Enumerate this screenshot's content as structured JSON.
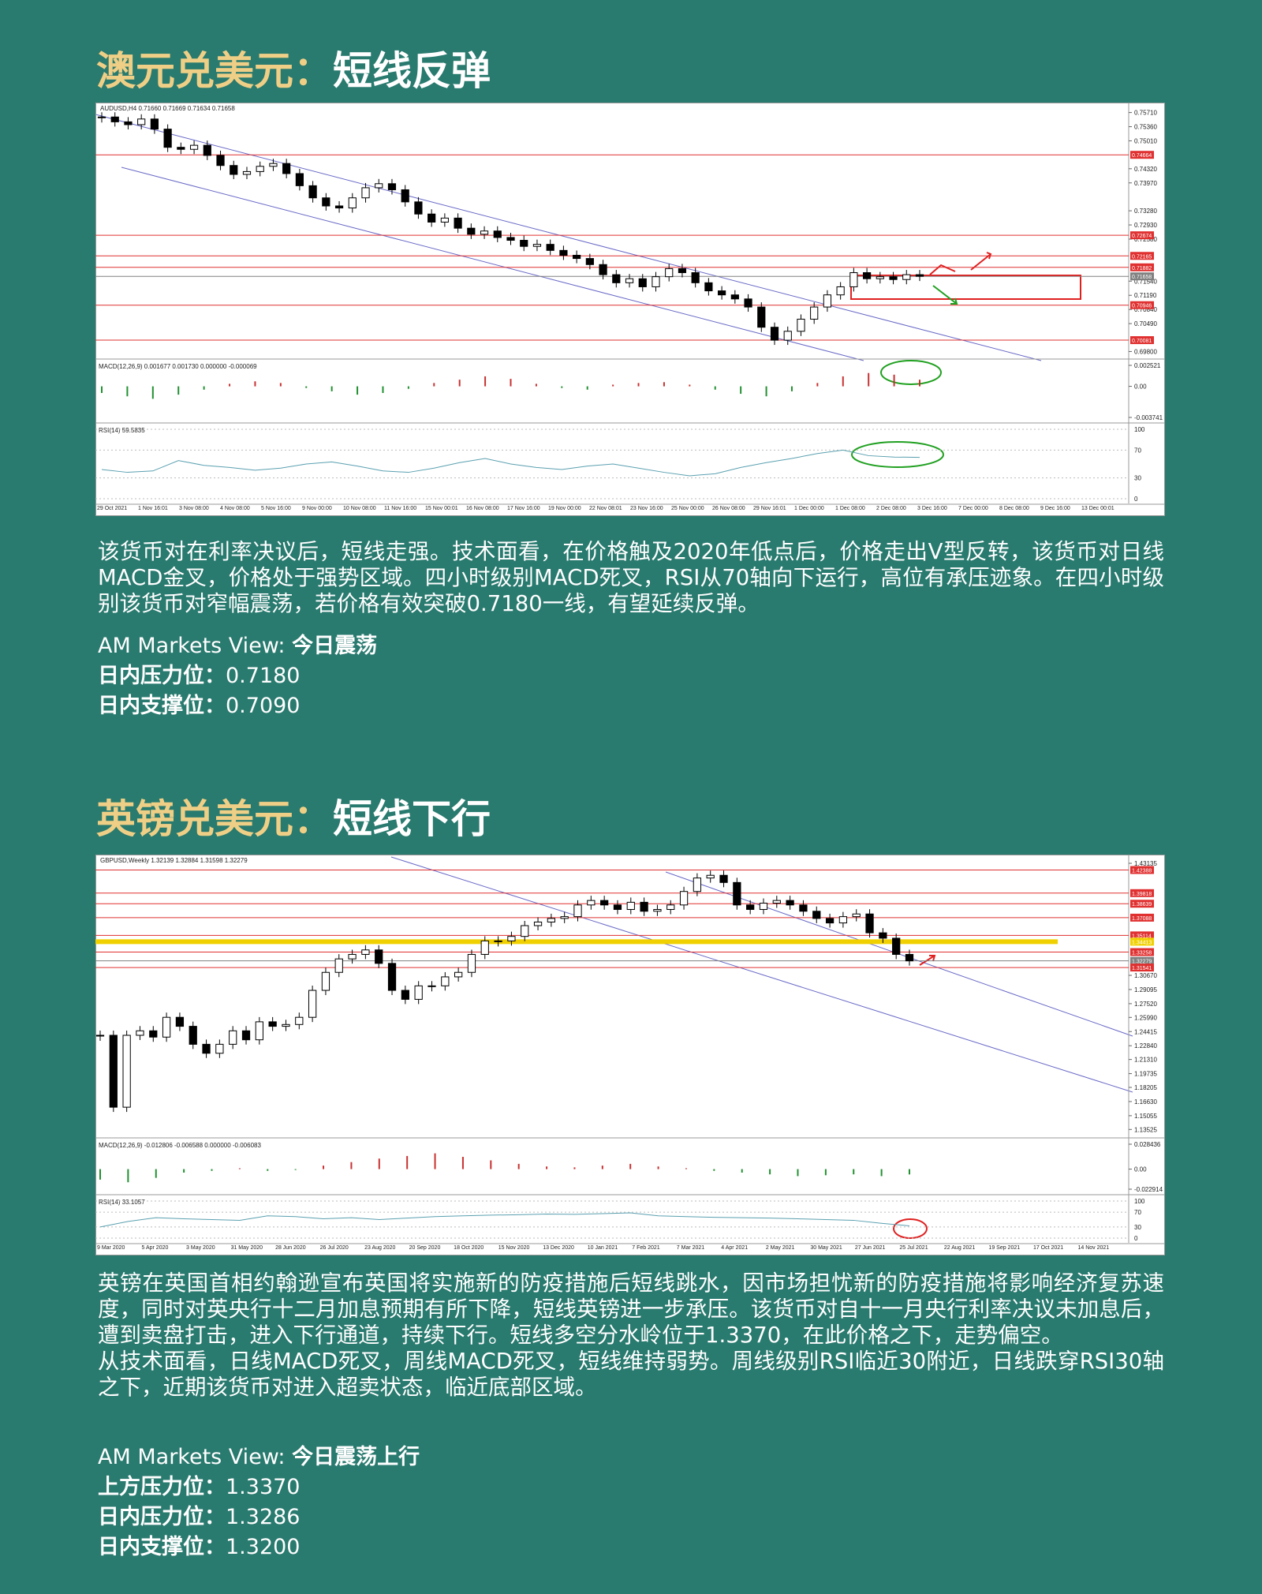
{
  "sections": [
    {
      "title_gold": "澳元兑美元：",
      "title_white": "短线反弹",
      "chart": {
        "header": "AUDUSD,H4  0.71660 0.71669 0.71634 0.71658",
        "ylim": [
          0.6975,
          0.758
        ],
        "yticks": [
          {
            "value": 0.7571,
            "label": "0.75710"
          },
          {
            "value": 0.7536,
            "label": "0.75360"
          },
          {
            "value": 0.7501,
            "label": "0.75010"
          },
          {
            "value": 0.7432,
            "label": "0.74320"
          },
          {
            "value": 0.7397,
            "label": "0.73970"
          },
          {
            "value": 0.7328,
            "label": "0.73280"
          },
          {
            "value": 0.7293,
            "label": "0.72930"
          },
          {
            "value": 0.7258,
            "label": "0.72580"
          },
          {
            "value": 0.7154,
            "label": "0.71540"
          },
          {
            "value": 0.7119,
            "label": "0.71190"
          },
          {
            "value": 0.7084,
            "label": "0.70840"
          },
          {
            "value": 0.7049,
            "label": "0.70490"
          },
          {
            "value": 0.698,
            "label": "0.69800"
          }
        ],
        "levels": [
          {
            "value": 0.74664,
            "color": "#e03030"
          },
          {
            "value": 0.72674,
            "color": "#e03030"
          },
          {
            "value": 0.72165,
            "color": "#e03030"
          },
          {
            "value": 0.71882,
            "color": "#e03030"
          },
          {
            "value": 0.71658,
            "color": "#808080"
          },
          {
            "value": 0.70946,
            "color": "#e03030"
          },
          {
            "value": 0.70081,
            "color": "#e03030"
          }
        ],
        "closes": [
          0.756,
          0.7548,
          0.7541,
          0.7555,
          0.753,
          0.7485,
          0.748,
          0.749,
          0.7465,
          0.744,
          0.7418,
          0.7425,
          0.7438,
          0.7445,
          0.742,
          0.739,
          0.736,
          0.734,
          0.7335,
          0.736,
          0.7385,
          0.7395,
          0.738,
          0.735,
          0.732,
          0.73,
          0.731,
          0.7285,
          0.727,
          0.7278,
          0.7262,
          0.7255,
          0.724,
          0.7245,
          0.723,
          0.7218,
          0.721,
          0.7195,
          0.717,
          0.715,
          0.716,
          0.714,
          0.7165,
          0.7185,
          0.7175,
          0.715,
          0.713,
          0.712,
          0.711,
          0.709,
          0.704,
          0.7008,
          0.703,
          0.706,
          0.709,
          0.712,
          0.714,
          0.7175,
          0.716,
          0.7165,
          0.7158,
          0.717,
          0.7166
        ],
        "macd": {
          "label": "MACD(12,26,9) 0.001677 0.001730 0.000000 -0.000069",
          "ylim": [
            -0.003741,
            0.002521
          ],
          "yticks": [
            0.002521,
            {
              "value": 0,
              "label": "0.00"
            },
            -0.003741
          ],
          "histogram": [
            -0.0008,
            -0.0012,
            -0.0015,
            -0.001,
            -0.0004,
            0.0003,
            0.0006,
            0.0004,
            -0.0002,
            -0.0006,
            -0.001,
            -0.0008,
            -0.0003,
            0.0004,
            0.0008,
            0.0012,
            0.0009,
            0.0003,
            -0.0002,
            -0.0004,
            0.0002,
            0.0004,
            0.0005,
            0.0002,
            -0.0004,
            -0.0009,
            -0.0012,
            -0.0006,
            0.0004,
            0.0012,
            0.0016,
            0.0014,
            0.0008
          ]
        },
        "rsi": {
          "label": "RSI(14) 59.5835",
          "ylim": [
            0,
            100
          ],
          "yticks": [
            100,
            70,
            30,
            0
          ],
          "values": [
            42,
            38,
            40,
            55,
            48,
            45,
            41,
            44,
            50,
            53,
            47,
            40,
            38,
            44,
            52,
            58,
            50,
            45,
            42,
            47,
            50,
            44,
            38,
            33,
            36,
            45,
            52,
            58,
            65,
            70,
            62,
            60,
            59.5835
          ]
        },
        "xticks": [
          "29 Oct 2021",
          "1 Nov 16:01",
          "3 Nov 08:00",
          "4 Nov 08:00",
          "5 Nov 16:00",
          "9 Nov 00:00",
          "10 Nov 08:00",
          "11 Nov 16:00",
          "15 Nov 00:01",
          "16 Nov 08:00",
          "17 Nov 16:00",
          "19 Nov 00:00",
          "22 Nov 08:01",
          "23 Nov 16:00",
          "25 Nov 00:00",
          "26 Nov 08:00",
          "29 Nov 16:01",
          "1 Dec 00:00",
          "1 Dec 08:00",
          "2 Dec 08:00",
          "3 Dec 16:00",
          "7 Dec 00:00",
          "8 Dec 08:00",
          "9 Dec 16:00",
          "13 Dec 00:01"
        ]
      },
      "paragraphs": [
        "该货币对在利率决议后，短线走强。技术面看，在价格触及2020年低点后，价格走出V型反转，该货币对日线MACD金叉，价格处于强势区域。四小时级别MACD死叉，RSI从70轴向下运行，高位有承压迹象。在四小时级别该货币对窄幅震荡，若价格有效突破0.7180一线，有望延续反弹。"
      ],
      "view_label": "AM Markets View: ",
      "view_value": "今日震荡",
      "levels": [
        {
          "label": "日内压力位：",
          "value": "0.7180"
        },
        {
          "label": "日内支撑位：",
          "value": "0.7090"
        }
      ]
    },
    {
      "title_gold": "英镑兑美元：",
      "title_white": "短线下行",
      "chart": {
        "header": "GBPUSD,Weekly  1.32139 1.32884 1.31598 1.32279",
        "ylim": [
          1.132,
          1.434
        ],
        "yticks": [
          1.43135,
          {
            "value": 1.3067,
            "label": "1.30670"
          },
          1.29095,
          {
            "value": 1.2752,
            "label": "1.27520"
          },
          {
            "value": 1.2599,
            "label": "1.25990"
          },
          1.24415,
          {
            "value": 1.2284,
            "label": "1.22840"
          },
          {
            "value": 1.2131,
            "label": "1.21310"
          },
          1.19735,
          1.18205,
          {
            "value": 1.1663,
            "label": "1.16630"
          },
          1.15055,
          1.13525
        ],
        "levels": [
          {
            "value": 1.42388,
            "color": "#e03030"
          },
          {
            "value": 1.39818,
            "color": "#e03030"
          },
          {
            "value": 1.38639,
            "color": "#e03030"
          },
          {
            "value": 1.37088,
            "color": "#e03030"
          },
          {
            "value": 1.35114,
            "color": "#e03030"
          },
          {
            "value": 1.34413,
            "color": "#f0d000"
          },
          {
            "value": 1.33258,
            "color": "#e03030"
          },
          {
            "value": 1.32279,
            "color": "#808080"
          },
          {
            "value": 1.31541,
            "color": "#e03030"
          }
        ],
        "closes": [
          1.24,
          1.16,
          1.24,
          1.245,
          1.238,
          1.26,
          1.25,
          1.23,
          1.22,
          1.23,
          1.245,
          1.235,
          1.255,
          1.25,
          1.252,
          1.26,
          1.29,
          1.31,
          1.325,
          1.33,
          1.335,
          1.32,
          1.29,
          1.28,
          1.295,
          1.295,
          1.305,
          1.31,
          1.33,
          1.345,
          1.345,
          1.35,
          1.362,
          1.366,
          1.37,
          1.372,
          1.385,
          1.39,
          1.385,
          1.38,
          1.388,
          1.378,
          1.38,
          1.385,
          1.4,
          1.415,
          1.418,
          1.41,
          1.385,
          1.38,
          1.387,
          1.39,
          1.385,
          1.378,
          1.37,
          1.365,
          1.372,
          1.375,
          1.354,
          1.348,
          1.33,
          1.3228
        ],
        "macd": {
          "label": "MACD(12,26,9) -0.012806 -0.006588 0.000000 -0.006083",
          "ylim": [
            -0.022914,
            0.028436
          ],
          "yticks": [
            0.028436,
            {
              "value": 0,
              "label": "0.00"
            },
            -0.022914
          ],
          "histogram": [
            -0.012,
            -0.015,
            -0.01,
            -0.004,
            -0.002,
            0.001,
            -0.002,
            -0.001,
            0.004,
            0.008,
            0.012,
            0.015,
            0.018,
            0.014,
            0.01,
            0.006,
            0.003,
            0.002,
            0.004,
            0.006,
            0.003,
            0.001,
            -0.002,
            -0.004,
            -0.006,
            -0.008,
            -0.007,
            -0.006,
            -0.008,
            -0.006083
          ]
        },
        "rsi": {
          "label": "RSI(14) 33.1057",
          "ylim": [
            0,
            100
          ],
          "yticks": [
            100,
            70,
            30,
            0
          ],
          "values": [
            30,
            45,
            55,
            52,
            50,
            48,
            60,
            58,
            52,
            55,
            50,
            54,
            58,
            60,
            62,
            63,
            65,
            64,
            66,
            68,
            60,
            58,
            56,
            55,
            54,
            52,
            50,
            48,
            40,
            33.1057
          ]
        },
        "xticks": [
          "9 Mar 2020",
          "5 Apr 2020",
          "3 May 2020",
          "31 May 2020",
          "28 Jun 2020",
          "26 Jul 2020",
          "23 Aug 2020",
          "20 Sep 2020",
          "18 Oct 2020",
          "15 Nov 2020",
          "13 Dec 2020",
          "10 Jan 2021",
          "7 Feb 2021",
          "7 Mar 2021",
          "4 Apr 2021",
          "2 May 2021",
          "30 May 2021",
          "27 Jun 2021",
          "25 Jul 2021",
          "22 Aug 2021",
          "19 Sep 2021",
          "17 Oct 2021",
          "14 Nov 2021"
        ]
      },
      "paragraphs": [
        "英镑在英国首相约翰逊宣布英国将实施新的防疫措施后短线跳水，因市场担忧新的防疫措施将影响经济复苏速度，同时对英央行十二月加息预期有所下降，短线英镑进一步承压。该货币对自十一月央行利率决议未加息后，遭到卖盘打击，进入下行通道，持续下行。短线多空分水岭位于1.3370，在此价格之下，走势偏空。",
        "从技术面看，日线MACD死叉，周线MACD死叉，短线维持弱势。周线级别RSI临近30附近，日线跌穿RSI30轴之下，近期该货币对进入超卖状态，临近底部区域。"
      ],
      "view_label": "AM Markets View: ",
      "view_value": "今日震荡上行",
      "levels": [
        {
          "label": "上方压力位：",
          "value": "1.3370"
        },
        {
          "label": "日内压力位：",
          "value": "1.3286"
        },
        {
          "label": "日内支撑位：",
          "value": "1.3200"
        }
      ]
    }
  ]
}
